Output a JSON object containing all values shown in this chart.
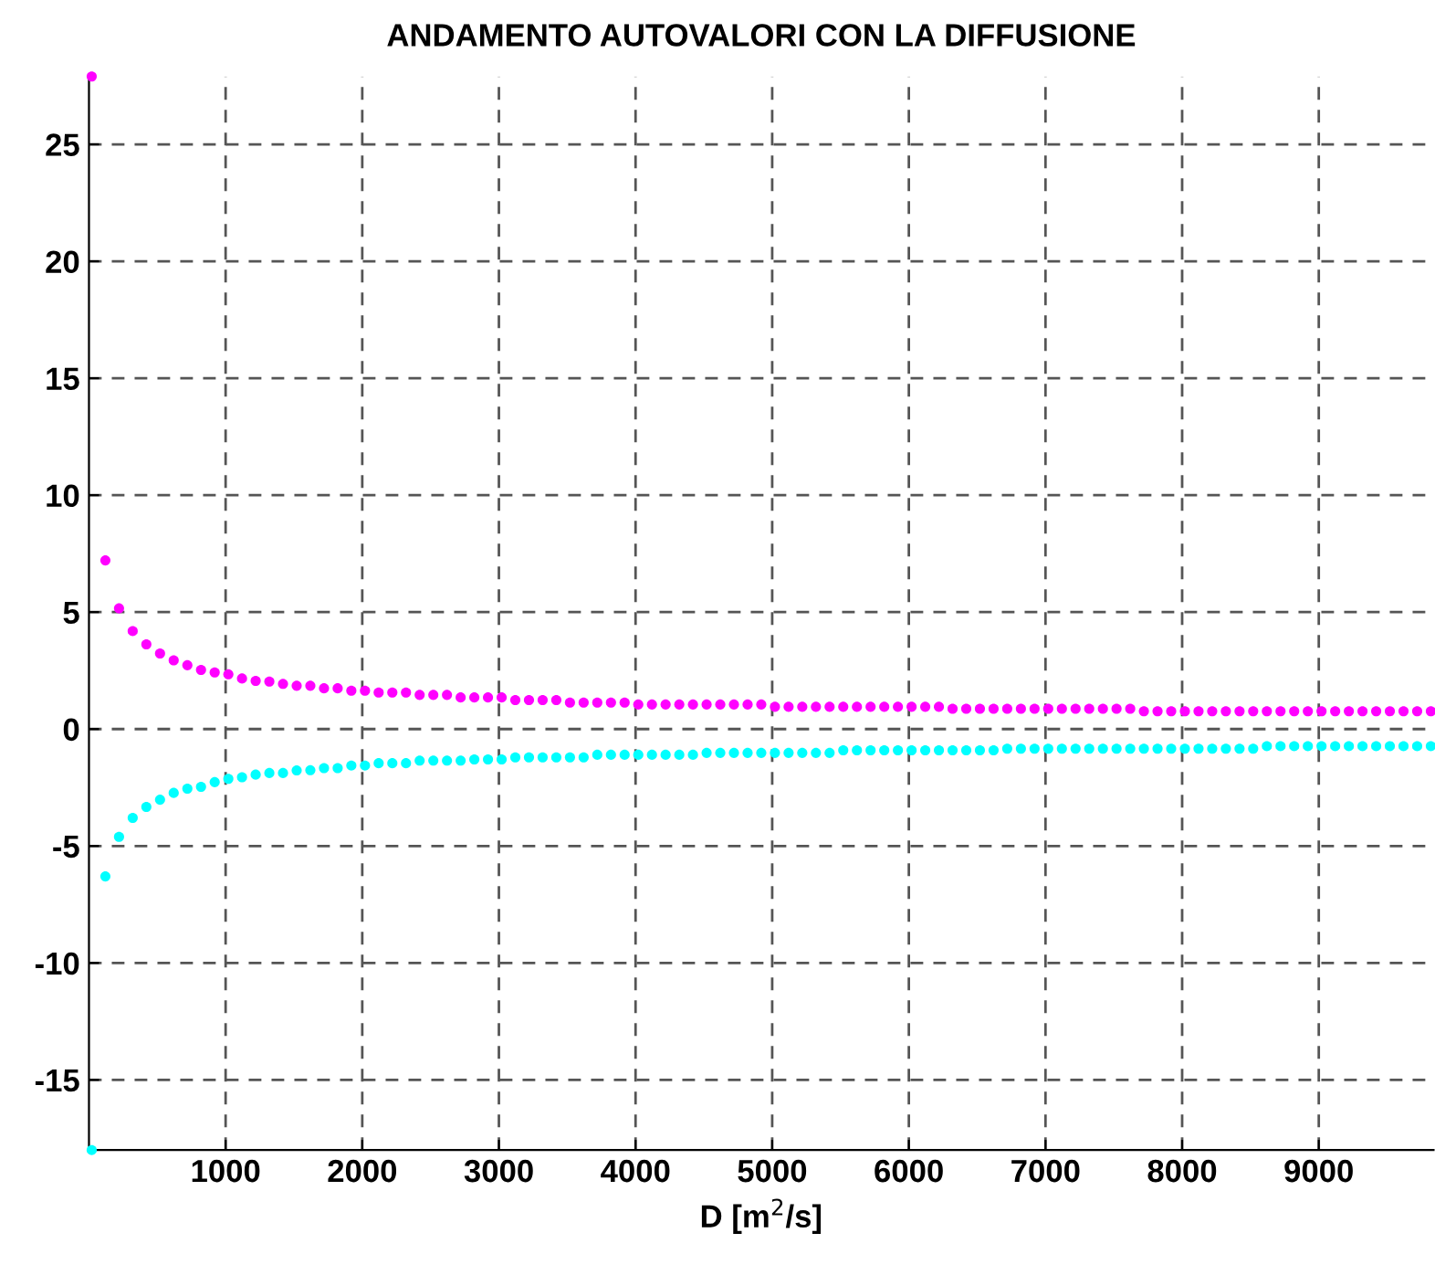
{
  "chart_data": {
    "type": "scatter",
    "title": "ANDAMENTO AUTOVALORI CON LA DIFFUSIONE",
    "xlabel": "D [m$^{2}$/s]",
    "x": [
      20,
      120,
      220,
      320,
      420,
      520,
      620,
      720,
      820,
      920,
      1020,
      1120,
      1220,
      1320,
      1420,
      1520,
      1620,
      1720,
      1820,
      1920,
      2020,
      2120,
      2220,
      2320,
      2420,
      2520,
      2620,
      2720,
      2820,
      2920,
      3020,
      3120,
      3220,
      3320,
      3420,
      3520,
      3620,
      3720,
      3820,
      3920,
      4020,
      4120,
      4220,
      4320,
      4420,
      4520,
      4620,
      4720,
      4820,
      4920,
      5020,
      5120,
      5220,
      5320,
      5420,
      5520,
      5620,
      5720,
      5820,
      5920,
      6020,
      6120,
      6220,
      6320,
      6420,
      6520,
      6620,
      6720,
      6820,
      6920,
      7020,
      7120,
      7220,
      7320,
      7420,
      7520,
      7620,
      7720,
      7820,
      7920,
      8020,
      8120,
      8220,
      8320,
      8420,
      8520,
      8620,
      8720,
      8820,
      8920,
      9020,
      9120,
      9220,
      9320,
      9420,
      9520,
      9620,
      9720,
      9820
    ],
    "series": [
      {
        "color": "#ff00ff",
        "values": [
          27.9,
          7.21,
          5.16,
          4.19,
          3.62,
          3.23,
          2.94,
          2.73,
          2.53,
          2.42,
          2.34,
          2.16,
          2.06,
          2.03,
          1.93,
          1.85,
          1.85,
          1.74,
          1.74,
          1.64,
          1.64,
          1.56,
          1.56,
          1.56,
          1.46,
          1.46,
          1.46,
          1.35,
          1.35,
          1.35,
          1.35,
          1.24,
          1.24,
          1.24,
          1.24,
          1.13,
          1.13,
          1.13,
          1.13,
          1.13,
          1.05,
          1.05,
          1.05,
          1.05,
          1.05,
          1.05,
          1.05,
          1.05,
          1.05,
          1.05,
          0.95,
          0.95,
          0.95,
          0.95,
          0.95,
          0.95,
          0.95,
          0.95,
          0.95,
          0.95,
          0.95,
          0.95,
          0.95,
          0.87,
          0.87,
          0.87,
          0.87,
          0.87,
          0.87,
          0.87,
          0.87,
          0.87,
          0.87,
          0.87,
          0.87,
          0.87,
          0.87,
          0.76,
          0.76,
          0.76,
          0.76,
          0.76,
          0.76,
          0.76,
          0.76,
          0.76,
          0.76,
          0.76,
          0.76,
          0.76,
          0.76,
          0.76,
          0.76,
          0.76,
          0.76,
          0.76,
          0.76,
          0.76,
          0.76
        ]
      },
      {
        "color": "#00ffff",
        "values": [
          -18.0,
          -6.3,
          -4.61,
          -3.8,
          -3.33,
          -3.02,
          -2.73,
          -2.55,
          -2.47,
          -2.27,
          -2.13,
          -2.06,
          -1.95,
          -1.88,
          -1.88,
          -1.77,
          -1.76,
          -1.67,
          -1.67,
          -1.56,
          -1.56,
          -1.46,
          -1.46,
          -1.46,
          -1.35,
          -1.35,
          -1.35,
          -1.35,
          -1.3,
          -1.3,
          -1.3,
          -1.21,
          -1.21,
          -1.21,
          -1.21,
          -1.21,
          -1.21,
          -1.1,
          -1.1,
          -1.1,
          -1.1,
          -1.1,
          -1.1,
          -1.1,
          -1.1,
          -1.02,
          -1.02,
          -1.02,
          -1.02,
          -1.02,
          -1.02,
          -1.02,
          -1.02,
          -1.02,
          -1.02,
          -0.91,
          -0.91,
          -0.91,
          -0.91,
          -0.91,
          -0.91,
          -0.91,
          -0.91,
          -0.91,
          -0.91,
          -0.91,
          -0.91,
          -0.84,
          -0.84,
          -0.84,
          -0.84,
          -0.84,
          -0.84,
          -0.84,
          -0.84,
          -0.84,
          -0.84,
          -0.84,
          -0.84,
          -0.84,
          -0.84,
          -0.84,
          -0.84,
          -0.84,
          -0.84,
          -0.84,
          -0.73,
          -0.73,
          -0.73,
          -0.73,
          -0.73,
          -0.73,
          -0.73,
          -0.73,
          -0.73,
          -0.73,
          -0.73,
          -0.73,
          -0.73
        ]
      }
    ],
    "xlim": [
      0,
      9840
    ],
    "ylim": [
      -18.0,
      27.9
    ],
    "xticks": [
      1000,
      2000,
      3000,
      4000,
      5000,
      6000,
      7000,
      8000,
      9000
    ],
    "yticks": [
      -15,
      -10,
      -5,
      0,
      5,
      10,
      15,
      20,
      25
    ],
    "grid": true,
    "marker": "circle",
    "legend": false
  }
}
